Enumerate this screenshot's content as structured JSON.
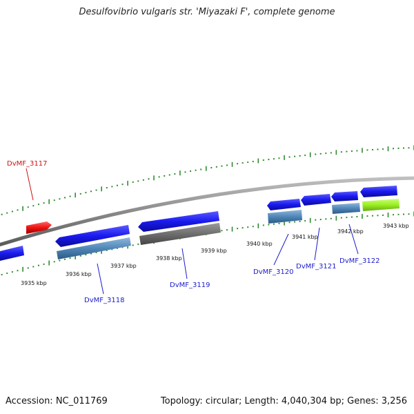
{
  "title": "Desulfovibrio vulgaris str. 'Miyazaki F', complete genome",
  "footer": {
    "accession": "Accession: NC_011769",
    "summary": "Topology: circular; Length: 4,040,304 bp; Genes: 3,256"
  },
  "colors": {
    "backbone": "#8a8a8a",
    "tick": "#2e8b2e",
    "gene_blue": "#1a1aee",
    "cds_steelblue": "#4f86b8",
    "gray_feature": "#6e6e6e",
    "red_feature": "#ee1111",
    "green_feature": "#99ee22",
    "label_blue": "#1a1acc",
    "label_red": "#cc1111"
  },
  "scale_labels": [
    "3935 kbp",
    "3936 kbp",
    "3937 kbp",
    "3938 kbp",
    "3939 kbp",
    "3940 kbp",
    "3941 kbp",
    "3942 kbp",
    "3943 kbp"
  ],
  "gene_labels": [
    {
      "text": "DvMF_3117",
      "color": "red"
    },
    {
      "text": "DvMF_3118",
      "color": "blue"
    },
    {
      "text": "DvMF_3119",
      "color": "blue"
    },
    {
      "text": "DvMF_3120",
      "color": "blue"
    },
    {
      "text": "DvMF_3121",
      "color": "blue"
    },
    {
      "text": "DvMF_3122",
      "color": "blue"
    }
  ]
}
